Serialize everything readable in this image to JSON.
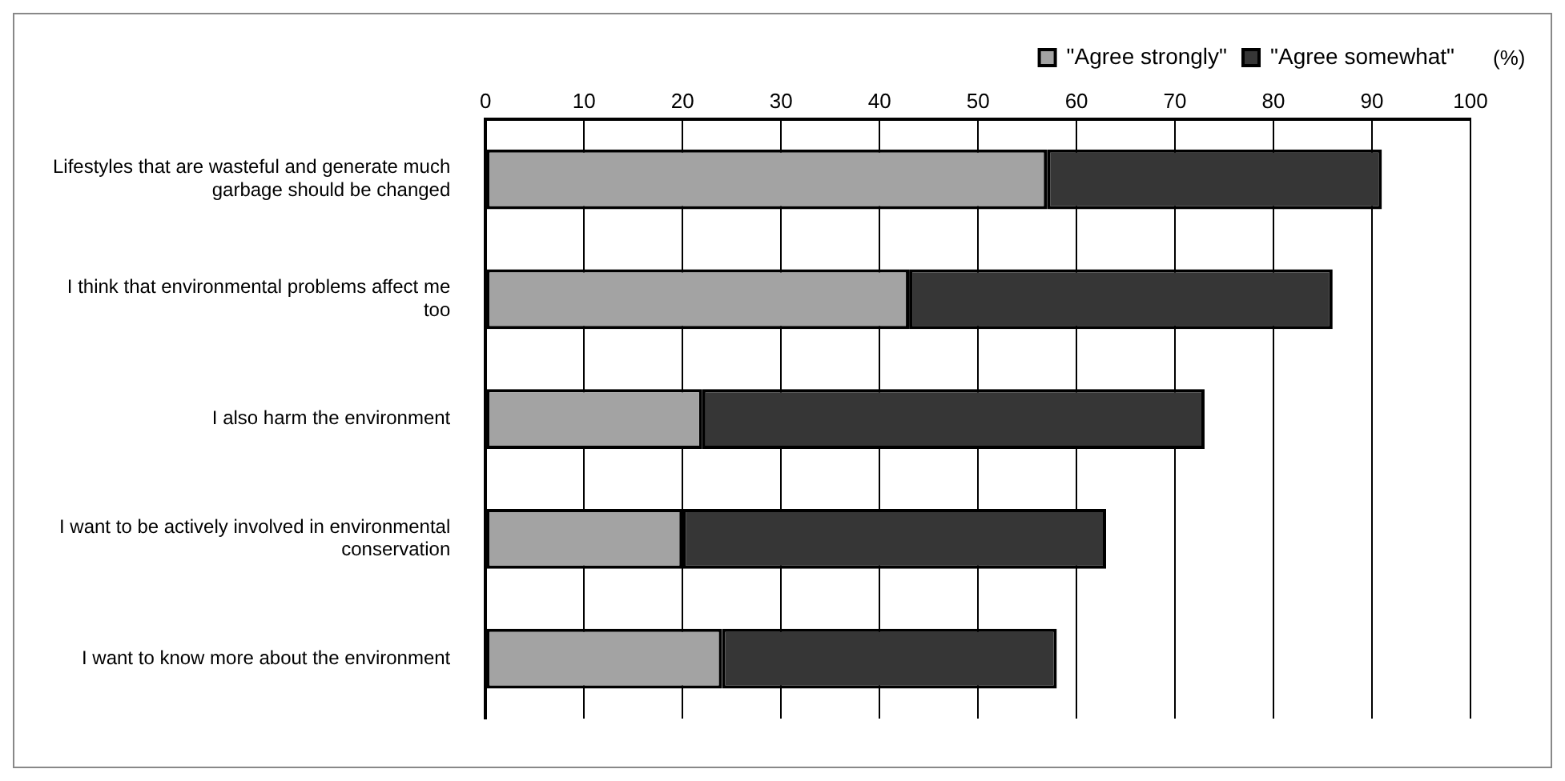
{
  "chart_data": {
    "type": "bar",
    "orientation": "horizontal",
    "stacked": true,
    "xlabel": "(%)",
    "categories": [
      "Lifestyles that are wasteful and generate much garbage should be changed",
      "I think that environmental problems affect me too",
      "I also harm the environment",
      "I want to be actively involved in environmental conservation",
      "I want to know more about the environment"
    ],
    "series": [
      {
        "name": "\"Agree strongly\"",
        "color": "#a3a3a3",
        "values": [
          57,
          43,
          22,
          20,
          24
        ]
      },
      {
        "name": "\"Agree somewhat\"",
        "color": "#363636",
        "values": [
          34,
          43,
          51,
          43,
          34
        ]
      }
    ],
    "xlim": [
      0,
      100
    ],
    "xticks": [
      0,
      10,
      20,
      30,
      40,
      50,
      60,
      70,
      80,
      90,
      100
    ],
    "grid": "x",
    "legend": "top right"
  }
}
